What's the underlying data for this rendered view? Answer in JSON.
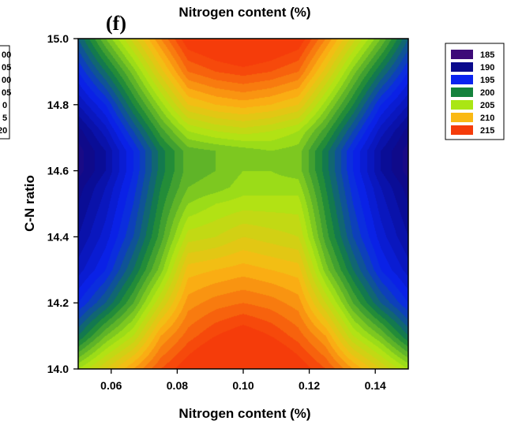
{
  "chart_data": {
    "type": "heatmap",
    "subtype": "filled-contour",
    "panel_label": "(f)",
    "title": "Nitrogen content (%)",
    "xlabel": "Nitrogen content (%)",
    "ylabel": "C-N ratio",
    "xlim": [
      0.05,
      0.15
    ],
    "ylim": [
      14.0,
      15.0
    ],
    "x_ticks": [
      "0.06",
      "0.08",
      "0.10",
      "0.12",
      "0.14"
    ],
    "x_tick_values": [
      0.06,
      0.08,
      0.1,
      0.12,
      0.14
    ],
    "y_ticks": [
      "14.0",
      "14.2",
      "14.4",
      "14.6",
      "14.8",
      "15.0"
    ],
    "y_tick_values": [
      14.0,
      14.2,
      14.4,
      14.6,
      14.8,
      15.0
    ],
    "grid": false,
    "legend_position": "right",
    "legend": [
      {
        "label": "185",
        "color": "#3d0a78"
      },
      {
        "label": "190",
        "color": "#0a0a8c"
      },
      {
        "label": "195",
        "color": "#0a23f0"
      },
      {
        "label": "200",
        "color": "#14823c"
      },
      {
        "label": "205",
        "color": "#aae614"
      },
      {
        "label": "210",
        "color": "#fab914"
      },
      {
        "label": "215",
        "color": "#f53c0a"
      }
    ],
    "left_clipped_legend_labels": [
      "00",
      "05",
      "00",
      "05",
      "0",
      "5",
      "20"
    ],
    "x_nodes": [
      0.05,
      0.0583,
      0.0667,
      0.075,
      0.0833,
      0.0917,
      0.1,
      0.1083,
      0.1167,
      0.125,
      0.1333,
      0.1417,
      0.15
    ],
    "y_nodes": [
      14.0,
      14.1,
      14.2,
      14.3,
      14.4,
      14.5,
      14.55,
      14.6,
      14.66,
      14.72,
      14.8,
      14.9,
      15.0
    ],
    "z": [
      [
        205,
        208,
        211,
        214,
        216,
        218,
        219,
        218,
        216,
        214,
        211,
        208,
        205
      ],
      [
        199,
        203,
        206,
        211,
        213.5,
        215,
        216,
        215,
        213.5,
        211,
        206,
        203,
        199
      ],
      [
        195,
        198,
        202,
        207,
        211.5,
        212.5,
        213,
        212.5,
        211.5,
        207,
        202,
        198,
        195
      ],
      [
        192.5,
        195,
        199,
        203.5,
        209.5,
        210,
        210.5,
        210,
        209.5,
        203.5,
        199,
        195,
        192.5
      ],
      [
        191,
        193.5,
        197,
        201.5,
        206.5,
        207,
        208,
        207.5,
        207,
        201.5,
        197,
        193.5,
        191
      ],
      [
        190,
        192.5,
        196,
        200.5,
        204,
        205,
        205.5,
        205.5,
        205.5,
        200.5,
        196,
        192.5,
        190
      ],
      [
        189.5,
        192,
        195.5,
        200,
        203,
        203.5,
        204.5,
        204.5,
        204.5,
        200,
        195.5,
        192,
        189.5
      ],
      [
        188.5,
        191,
        195,
        199.5,
        202.5,
        203,
        204,
        204,
        203.5,
        199.5,
        195,
        191,
        188.5
      ],
      [
        188.5,
        191,
        195,
        199.5,
        202.5,
        203,
        203.5,
        204,
        203.5,
        199.5,
        195,
        191,
        188.5
      ],
      [
        189.5,
        192.5,
        197,
        201.5,
        205,
        206,
        206.5,
        206,
        205,
        201.5,
        197,
        192.5,
        189.5
      ],
      [
        192,
        195,
        200,
        204.5,
        209,
        210,
        210.5,
        210,
        209,
        204.5,
        200,
        195,
        192
      ],
      [
        195,
        199,
        203.5,
        208.5,
        213,
        214,
        214.5,
        214,
        213,
        208.5,
        203.5,
        199,
        195
      ],
      [
        198,
        203,
        207.5,
        212,
        216,
        217,
        218,
        217,
        216,
        212,
        207.5,
        203,
        198
      ]
    ]
  }
}
